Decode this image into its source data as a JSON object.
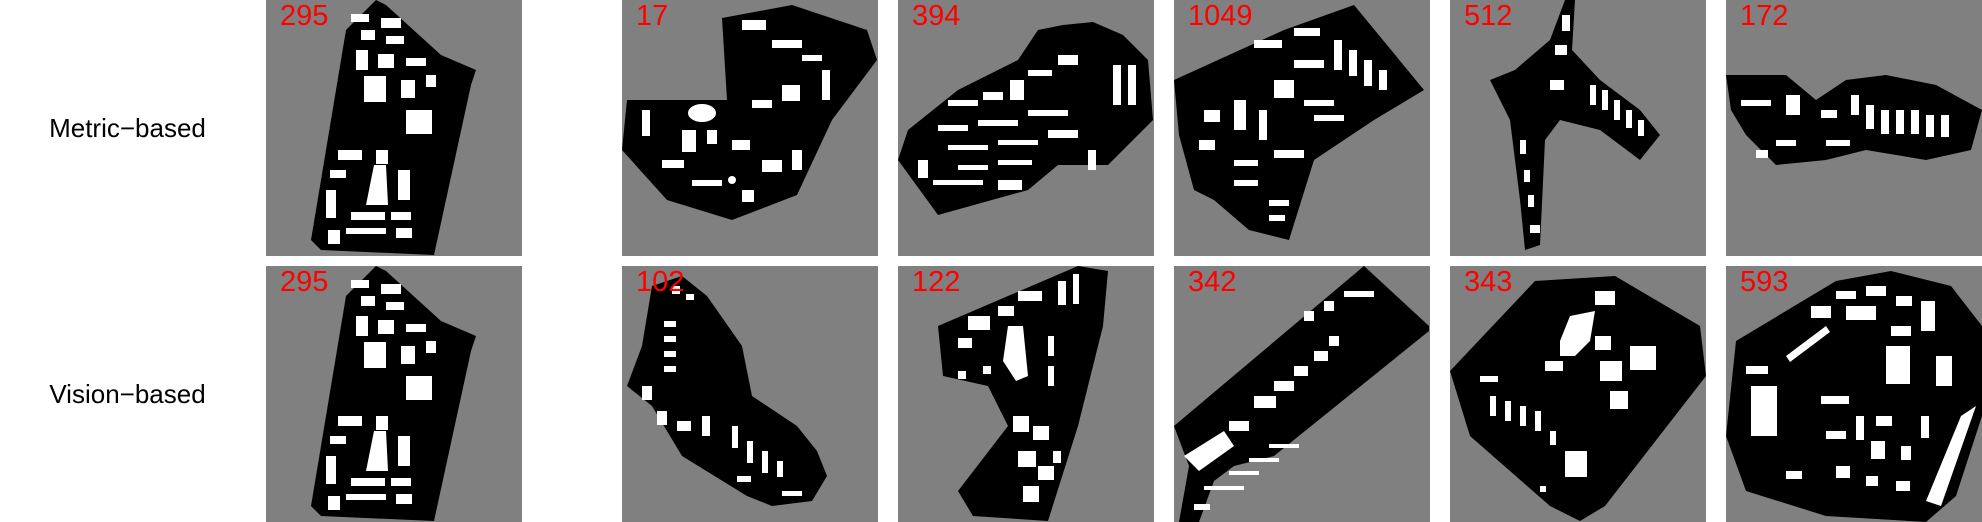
{
  "rows": [
    {
      "label": "Metric−based",
      "tiles": [
        {
          "number": "295"
        },
        {
          "number": "17"
        },
        {
          "number": "394"
        },
        {
          "number": "1049"
        },
        {
          "number": "512"
        },
        {
          "number": "172"
        }
      ]
    },
    {
      "label": "Vision−based",
      "tiles": [
        {
          "number": "295"
        },
        {
          "number": "102"
        },
        {
          "number": "122"
        },
        {
          "number": "342"
        },
        {
          "number": "343"
        },
        {
          "number": "593"
        }
      ]
    }
  ],
  "colors": {
    "tile_background": "#808080",
    "plot_fill": "#000000",
    "building_fill": "#ffffff",
    "number_text": "#ff0000",
    "label_text": "#000000"
  }
}
